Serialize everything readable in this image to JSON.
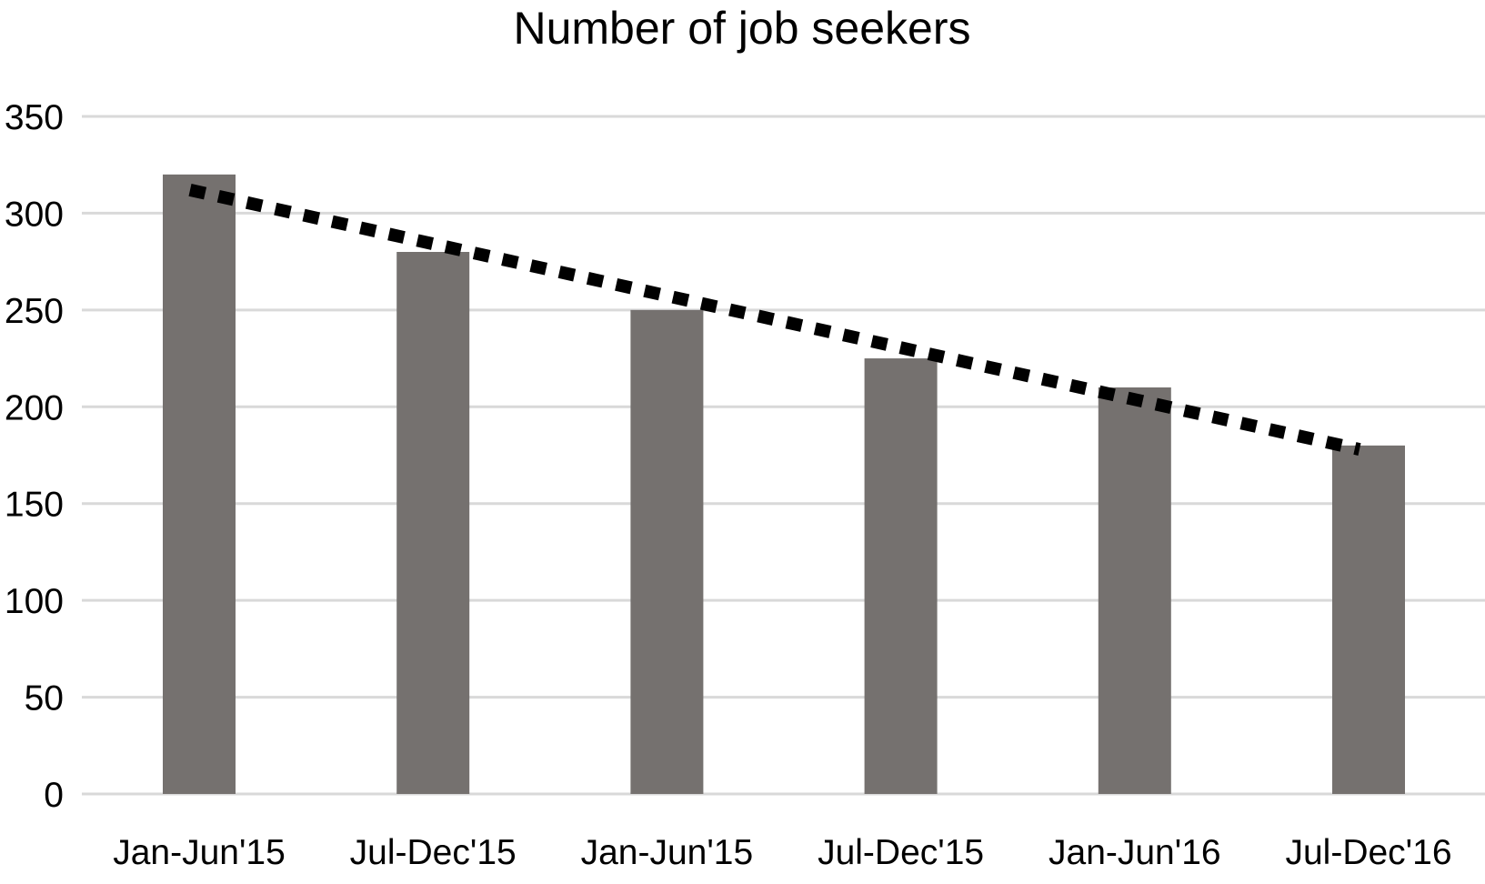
{
  "chart_data": {
    "type": "bar",
    "title": "Number of job seekers",
    "xlabel": "",
    "ylabel": "",
    "categories": [
      "Jan-Jun'15",
      "Jul-Dec'15",
      "Jan-Jun'15",
      "Jul-Dec'15",
      "Jan-Jun'16",
      "Jul-Dec'16"
    ],
    "values": [
      320,
      280,
      250,
      225,
      210,
      180
    ],
    "ylim": [
      0,
      350
    ],
    "yticks": [
      0,
      50,
      100,
      150,
      200,
      250,
      300,
      350
    ],
    "grid": true,
    "legend": "none",
    "trendline": {
      "style": "dotted",
      "color": "#000000",
      "start_value": 312,
      "end_value": 178
    },
    "colors": {
      "bar": "#75716f",
      "grid": "#d9d9d9",
      "text": "#000000"
    }
  }
}
